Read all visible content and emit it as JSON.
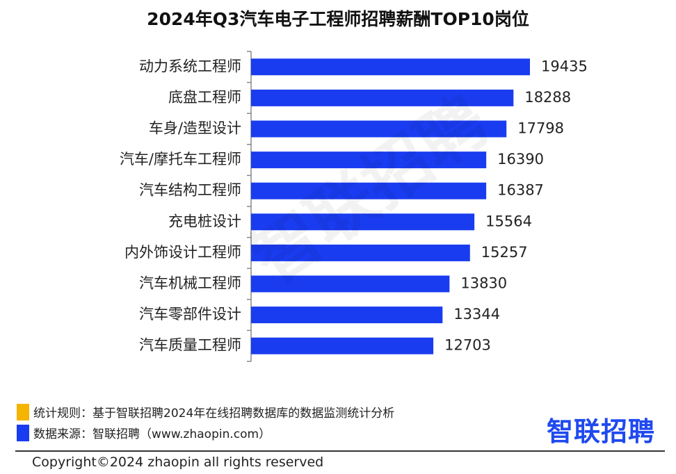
{
  "chart_data": {
    "type": "bar",
    "orientation": "horizontal",
    "title": "2024年Q3汽车电子工程师招聘薪酬TOP10岗位",
    "categories": [
      "动力系统工程师",
      "底盘工程师",
      "车身/造型设计",
      "汽车/摩托车工程师",
      "汽车结构工程师",
      "充电桩设计",
      "内外饰设计工程师",
      "汽车机械工程师",
      "汽车零部件设计",
      "汽车质量工程师"
    ],
    "values": [
      19435,
      18288,
      17798,
      16390,
      16387,
      15564,
      15257,
      13830,
      13344,
      12703
    ],
    "bar_color": "#1a3cf0",
    "grid": false
  },
  "watermark": "智联招聘",
  "footer": {
    "rule_text": "统计规则：基于智联招聘2024年在线招聘数据库的数据监测统计分析",
    "source_text": "数据来源：智联招聘（www.zhaopin.com）",
    "rule_color": "#f5b400",
    "source_color": "#1a3cf0",
    "logo_text": "智联招聘",
    "copyright": "Copyright©2024 zhaopin all rights reserved"
  }
}
